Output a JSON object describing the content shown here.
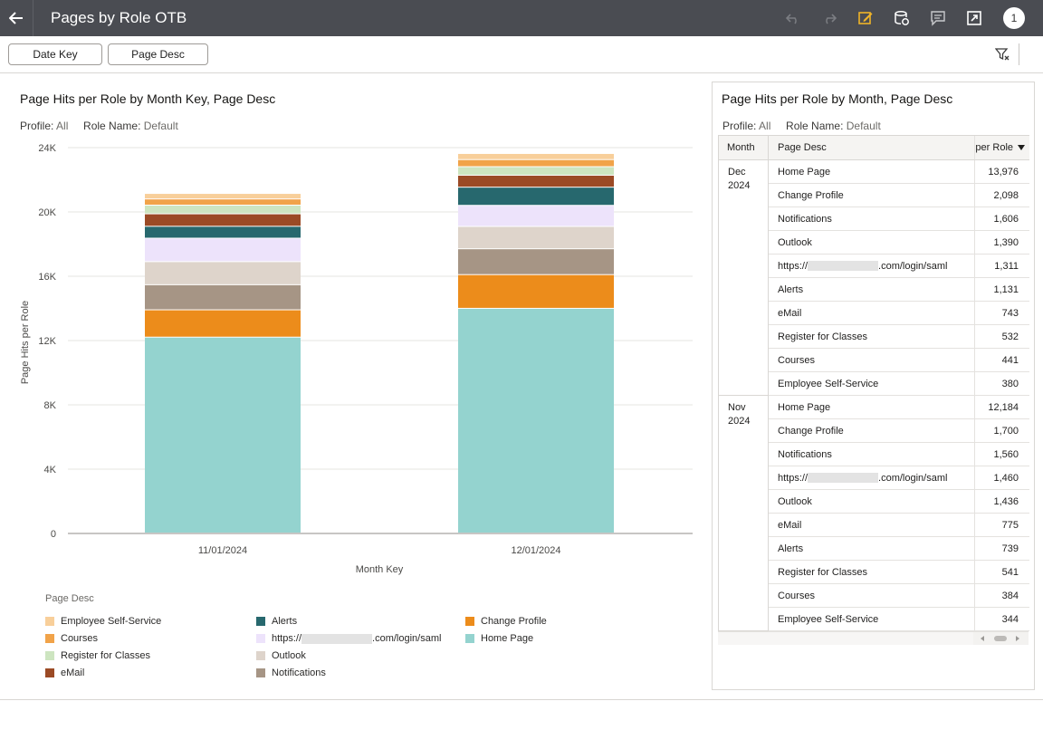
{
  "app": {
    "title": "Pages by Role OTB",
    "user_badge": "1"
  },
  "toolbar": {
    "icons": [
      "undo-icon",
      "redo-icon",
      "edit-icon",
      "data-refresh-icon",
      "comment-icon",
      "present-icon"
    ],
    "accent": "#f0b429"
  },
  "filters": {
    "chips": [
      "Date Key",
      "Page Desc"
    ]
  },
  "left_panel": {
    "title": "Page Hits per Role by Month Key, Page Desc",
    "profile_label": "Profile:",
    "profile_value": "All",
    "role_label": "Role Name:",
    "role_value": "Default",
    "legend_title": "Page Desc"
  },
  "chart_data": {
    "type": "bar",
    "stacked": true,
    "categories": [
      "11/01/2024",
      "12/01/2024"
    ],
    "xlabel": "Month Key",
    "ylabel": "Page Hits per Role",
    "ylim": [
      0,
      24000
    ],
    "yticks": [
      "0",
      "4K",
      "8K",
      "12K",
      "16K",
      "20K",
      "24K"
    ],
    "grid": true,
    "legend_position": "bottom",
    "series": [
      {
        "name": "Home Page",
        "color": "#94d3cf",
        "values": [
          12184,
          13976
        ]
      },
      {
        "name": "Change Profile",
        "color": "#ec8c1b",
        "values": [
          1700,
          2098
        ]
      },
      {
        "name": "Notifications",
        "color": "#a69585",
        "values": [
          1560,
          1606
        ]
      },
      {
        "name": "Outlook",
        "color": "#ded4cb",
        "values": [
          1436,
          1390
        ]
      },
      {
        "name": "https://",
        "name_suffix": ".com/login/saml",
        "color": "#ede3fb",
        "values": [
          1460,
          1311
        ]
      },
      {
        "name": "Alerts",
        "color": "#27686e",
        "values": [
          739,
          1131
        ]
      },
      {
        "name": "eMail",
        "color": "#9b4a25",
        "values": [
          775,
          743
        ]
      },
      {
        "name": "Register for Classes",
        "color": "#cde5c0",
        "values": [
          541,
          532
        ]
      },
      {
        "name": "Courses",
        "color": "#f1a349",
        "values": [
          384,
          441
        ]
      },
      {
        "name": "Employee Self-Service",
        "color": "#f8cf9a",
        "values": [
          344,
          380
        ]
      }
    ]
  },
  "right_panel": {
    "title": "Page Hits per Role by Month, Page Desc",
    "profile_label": "Profile:",
    "profile_value": "All",
    "role_label": "Role Name:",
    "role_value": "Default",
    "columns": [
      "Month",
      "Page Desc",
      "per Role"
    ],
    "groups": [
      {
        "month_line1": "Dec",
        "month_line2": "2024",
        "rows": [
          {
            "page": "Home Page",
            "value": "13,976"
          },
          {
            "page": "Change Profile",
            "value": "2,098"
          },
          {
            "page": "Notifications",
            "value": "1,606"
          },
          {
            "page": "Outlook",
            "value": "1,390"
          },
          {
            "page": "https://",
            "page_suffix": ".com/login/saml",
            "masked": true,
            "value": "1,311"
          },
          {
            "page": "Alerts",
            "value": "1,131"
          },
          {
            "page": "eMail",
            "value": "743"
          },
          {
            "page": "Register for Classes",
            "value": "532"
          },
          {
            "page": "Courses",
            "value": "441"
          },
          {
            "page": "Employee Self-Service",
            "value": "380"
          }
        ]
      },
      {
        "month_line1": "Nov",
        "month_line2": "2024",
        "rows": [
          {
            "page": "Home Page",
            "value": "12,184"
          },
          {
            "page": "Change Profile",
            "value": "1,700"
          },
          {
            "page": "Notifications",
            "value": "1,560"
          },
          {
            "page": "https://",
            "page_suffix": ".com/login/saml",
            "masked": true,
            "value": "1,460"
          },
          {
            "page": "Outlook",
            "value": "1,436"
          },
          {
            "page": "eMail",
            "value": "775"
          },
          {
            "page": "Alerts",
            "value": "739"
          },
          {
            "page": "Register for Classes",
            "value": "541"
          },
          {
            "page": "Courses",
            "value": "384"
          },
          {
            "page": "Employee Self-Service",
            "value": "344"
          }
        ]
      }
    ]
  }
}
